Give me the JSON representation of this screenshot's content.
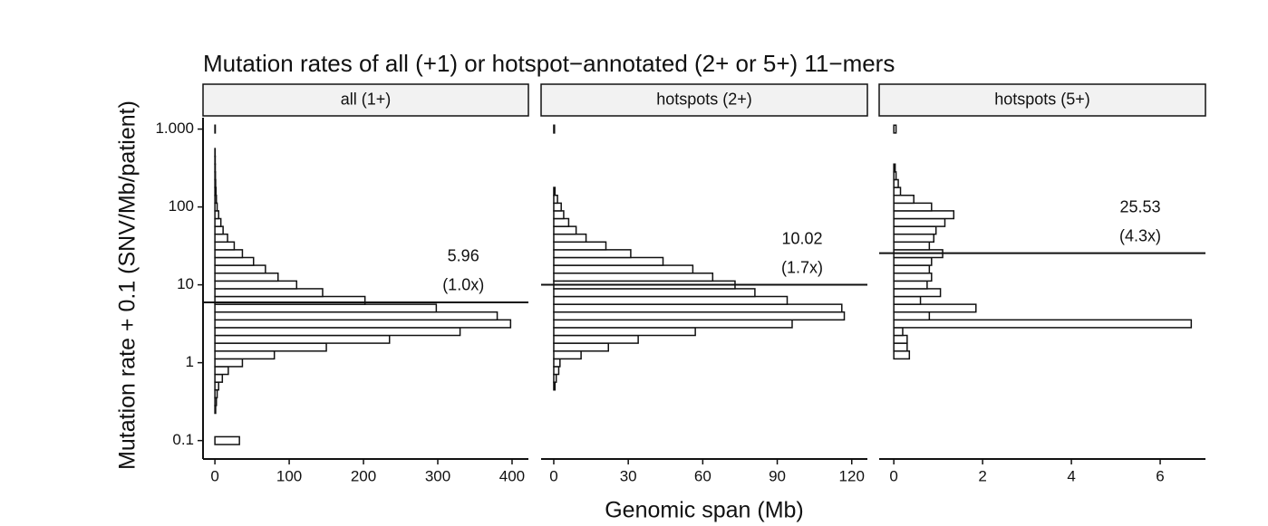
{
  "title": "Mutation rates of all (+1) or hotspot−annotated (2+ or 5+) 11−mers",
  "ylabel": "Mutation rate + 0.1 (SNV/Mb/patient)",
  "xlabel": "Genomic span (Mb)",
  "chart_data": [
    {
      "type": "histogram",
      "orientation": "horizontal",
      "facet_label": "all (1+)",
      "yscale": "log",
      "ylim": [
        0.058,
        1400
      ],
      "yticks": [
        0.1,
        1,
        10,
        100,
        {
          "value": 1000,
          "label": "1.000"
        }
      ],
      "xlim": [
        -16,
        422
      ],
      "xticks": [
        0,
        100,
        200,
        300,
        400
      ],
      "bins": [
        0.089,
        0.112,
        0.141,
        0.178,
        0.224,
        0.282,
        0.355,
        0.447,
        0.562,
        0.708,
        0.891,
        1.12,
        1.41,
        1.78,
        2.24,
        2.82,
        3.55,
        4.47,
        5.62,
        7.08,
        8.91,
        11.2,
        14.1,
        17.8,
        22.4,
        28.2,
        35.5,
        44.7,
        56.2,
        70.8,
        89.1,
        112,
        141,
        178,
        224,
        282,
        355,
        447,
        562,
        708,
        891,
        1122
      ],
      "values": [
        33,
        0,
        0,
        0,
        1,
        2,
        3,
        5,
        10,
        18,
        37,
        80,
        150,
        235,
        330,
        398,
        380,
        298,
        202,
        145,
        110,
        85,
        68,
        52,
        37,
        26,
        17,
        11,
        8,
        5,
        3,
        2,
        1.5,
        1,
        0.7,
        0.5,
        0.4,
        0.3,
        0,
        0,
        0.5
      ],
      "color": "#ffffff",
      "edge_color": "#111111",
      "mean": 5.96,
      "annotation": "(1.0x)"
    },
    {
      "type": "histogram",
      "orientation": "horizontal",
      "facet_label": "hotspots (2+)",
      "yscale": "log",
      "ylim": [
        0.058,
        1400
      ],
      "yticks": [
        0.1,
        1,
        10,
        100,
        {
          "value": 1000,
          "label": "1.000"
        }
      ],
      "xlim": [
        -5.1,
        126.3
      ],
      "xticks": [
        0,
        30,
        60,
        90,
        120
      ],
      "bins": [
        0.089,
        0.112,
        0.141,
        0.178,
        0.224,
        0.282,
        0.355,
        0.447,
        0.562,
        0.708,
        0.891,
        1.12,
        1.41,
        1.78,
        2.24,
        2.82,
        3.55,
        4.47,
        5.62,
        7.08,
        8.91,
        11.2,
        14.1,
        17.8,
        22.4,
        28.2,
        35.5,
        44.7,
        56.2,
        70.8,
        89.1,
        112,
        141,
        178,
        224,
        282,
        355,
        447,
        562,
        708,
        891,
        1122
      ],
      "values": [
        0,
        0,
        0,
        0,
        0,
        0,
        0,
        0.5,
        1,
        2,
        2.5,
        11,
        22,
        34,
        57,
        96,
        117,
        116,
        94,
        81,
        73,
        64,
        56,
        44,
        31,
        21,
        13,
        9,
        6,
        4,
        3,
        1.5,
        0.5,
        0,
        0,
        0,
        0,
        0,
        0,
        0,
        0.3
      ],
      "color": "#ffffff",
      "edge_color": "#111111",
      "mean": 10.02,
      "annotation": "(1.7x)"
    },
    {
      "type": "histogram",
      "orientation": "horizontal",
      "facet_label": "hotspots (5+)",
      "yscale": "log",
      "ylim": [
        0.058,
        1400
      ],
      "yticks": [
        0.1,
        1,
        10,
        100,
        {
          "value": 1000,
          "label": "1.000"
        }
      ],
      "xlim": [
        -0.33,
        7.02
      ],
      "xticks": [
        0,
        2,
        4,
        6
      ],
      "bins": [
        0.089,
        0.112,
        0.141,
        0.178,
        0.224,
        0.282,
        0.355,
        0.447,
        0.562,
        0.708,
        0.891,
        1.12,
        1.41,
        1.78,
        2.24,
        2.82,
        3.55,
        4.47,
        5.62,
        7.08,
        8.91,
        11.2,
        14.1,
        17.8,
        22.4,
        28.2,
        35.5,
        44.7,
        56.2,
        70.8,
        89.1,
        112,
        141,
        178,
        224,
        282,
        355,
        447,
        562,
        708,
        891,
        1122
      ],
      "values": [
        0,
        0,
        0,
        0,
        0,
        0,
        0,
        0,
        0,
        0,
        0,
        0.35,
        0.3,
        0.3,
        0.2,
        6.7,
        0.8,
        1.85,
        0.6,
        1.05,
        0.75,
        0.85,
        0.8,
        0.85,
        1.1,
        0.8,
        0.9,
        0.95,
        1.15,
        1.35,
        0.85,
        0.45,
        0.15,
        0.1,
        0.05,
        0.03,
        0,
        0,
        0,
        0,
        0.05
      ],
      "color": "#ffffff",
      "edge_color": "#111111",
      "mean": 25.53,
      "annotation": "(4.3x)"
    }
  ]
}
